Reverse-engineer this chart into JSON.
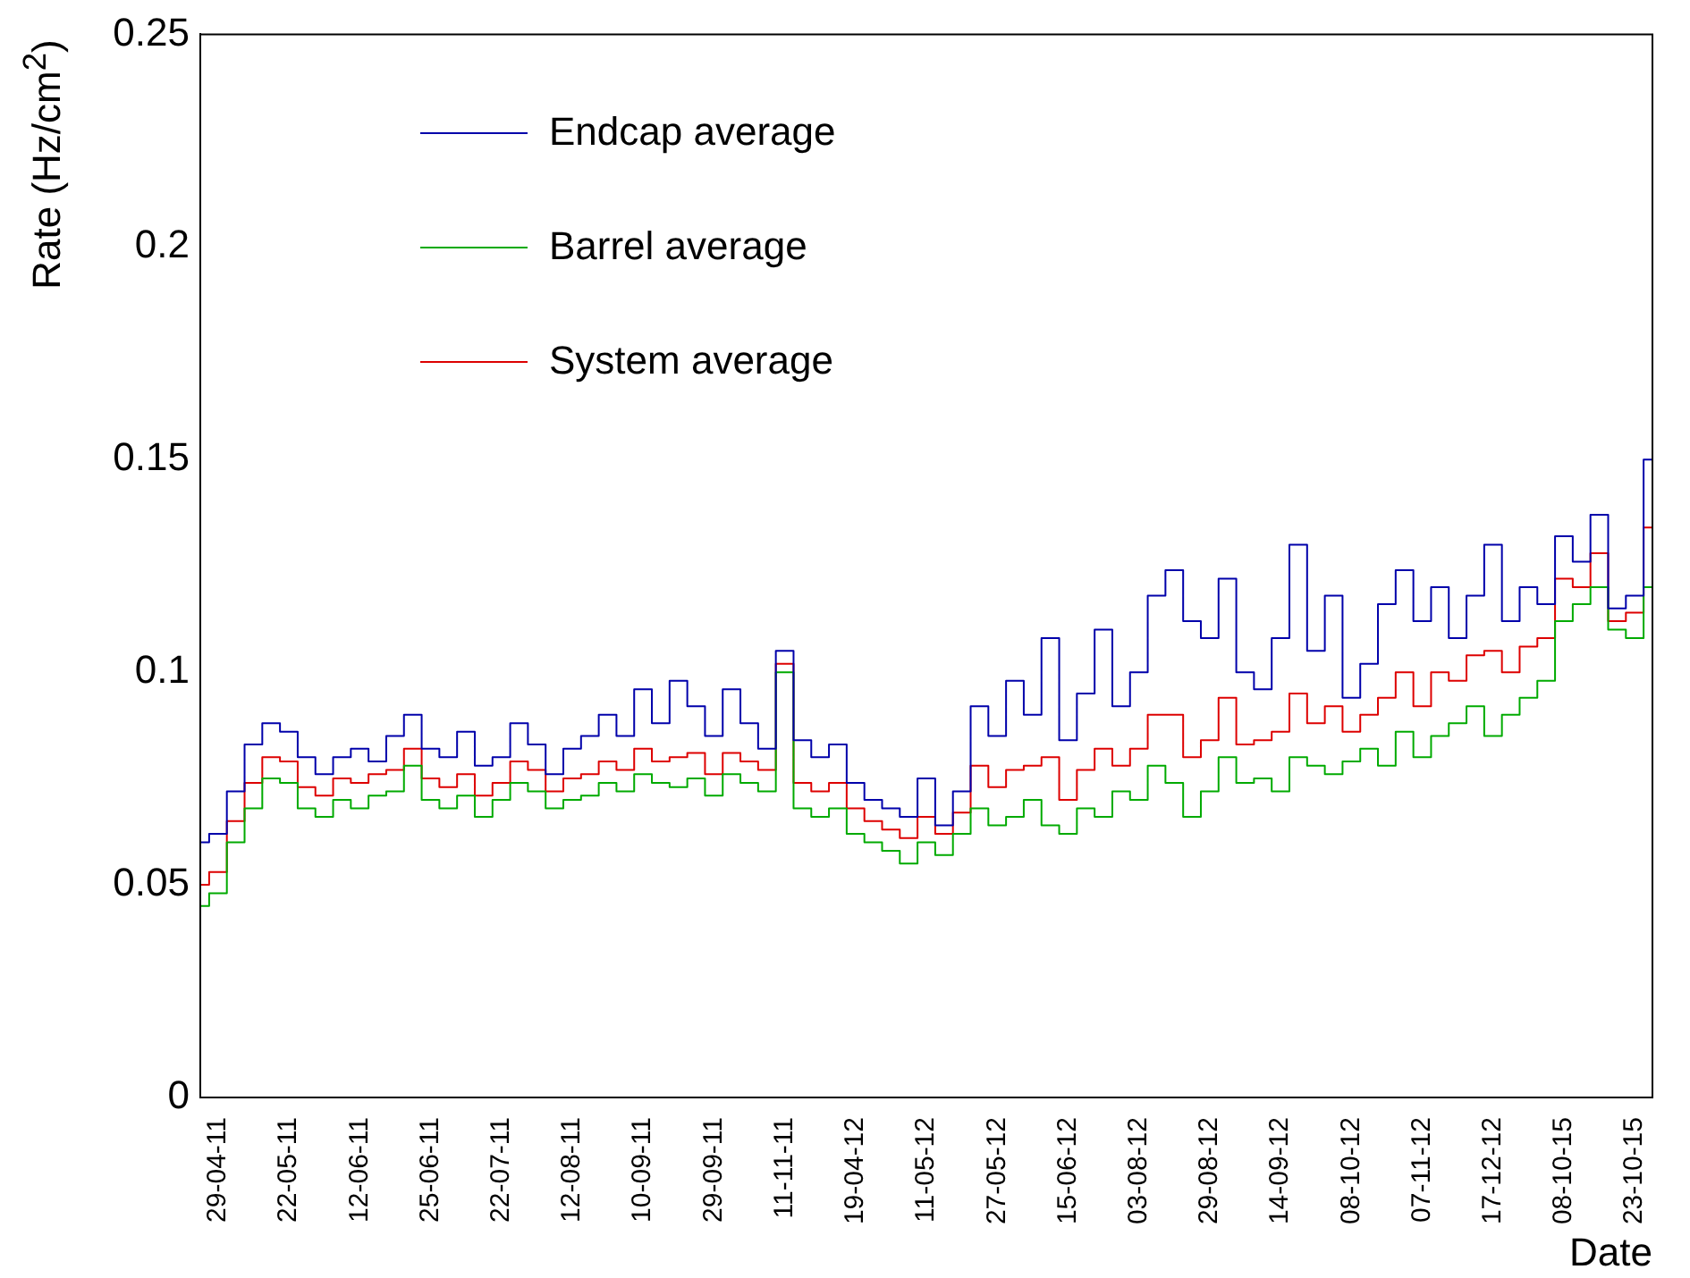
{
  "chart_data": {
    "type": "step",
    "xlabel": "Date",
    "ylabel": "Rate (Hz/cm$^{2}$)",
    "legend": "top left",
    "grid": false,
    "categories": [
      null,
      "29-04-11",
      null,
      null,
      null,
      "22-05-11",
      null,
      null,
      null,
      "12-06-11",
      null,
      null,
      null,
      "25-06-11",
      null,
      null,
      null,
      "22-07-11",
      null,
      null,
      null,
      "12-08-11",
      null,
      null,
      null,
      "10-09-11",
      null,
      null,
      null,
      "29-09-11",
      null,
      null,
      null,
      "11-11-11",
      null,
      null,
      null,
      "19-04-12",
      null,
      null,
      null,
      "11-05-12",
      null,
      null,
      null,
      "27-05-12",
      null,
      null,
      null,
      "15-06-12",
      null,
      null,
      null,
      "03-08-12",
      null,
      null,
      null,
      "29-08-12",
      null,
      null,
      null,
      "14-09-12",
      null,
      null,
      null,
      "08-10-12",
      null,
      null,
      null,
      "07-11-12",
      null,
      null,
      null,
      "17-12-12",
      null,
      null,
      null,
      "08-10-15",
      null,
      null,
      null,
      "23-10-15",
      null
    ],
    "ylim": [
      0,
      0.25
    ],
    "yticks": [
      0,
      0.05,
      0.1,
      0.15,
      0.2,
      0.25
    ],
    "series": [
      {
        "name": "Endcap average",
        "color": "#0000aa",
        "values": [
          0.06,
          0.062,
          0.072,
          0.083,
          0.088,
          0.086,
          0.08,
          0.076,
          0.08,
          0.082,
          0.079,
          0.085,
          0.09,
          0.082,
          0.08,
          0.086,
          0.078,
          0.08,
          0.088,
          0.083,
          0.076,
          0.082,
          0.085,
          0.09,
          0.085,
          0.096,
          0.088,
          0.098,
          0.092,
          0.085,
          0.096,
          0.088,
          0.082,
          0.105,
          0.084,
          0.08,
          0.083,
          0.074,
          0.07,
          0.068,
          0.066,
          0.075,
          0.064,
          0.072,
          0.092,
          0.085,
          0.098,
          0.09,
          0.108,
          0.084,
          0.095,
          0.11,
          0.092,
          0.1,
          0.118,
          0.124,
          0.112,
          0.108,
          0.122,
          0.1,
          0.096,
          0.108,
          0.13,
          0.105,
          0.118,
          0.094,
          0.102,
          0.116,
          0.124,
          0.112,
          0.12,
          0.108,
          0.118,
          0.13,
          0.112,
          0.12,
          0.116,
          0.132,
          0.126,
          0.137,
          0.115,
          0.118,
          0.15
        ]
      },
      {
        "name": "Barrel average",
        "color": "#00aa00",
        "values": [
          0.045,
          0.048,
          0.06,
          0.068,
          0.075,
          0.074,
          0.068,
          0.066,
          0.07,
          0.068,
          0.071,
          0.072,
          0.078,
          0.07,
          0.068,
          0.071,
          0.066,
          0.07,
          0.074,
          0.072,
          0.068,
          0.07,
          0.071,
          0.074,
          0.072,
          0.076,
          0.074,
          0.073,
          0.075,
          0.071,
          0.076,
          0.074,
          0.072,
          0.1,
          0.068,
          0.066,
          0.068,
          0.062,
          0.06,
          0.058,
          0.055,
          0.06,
          0.057,
          0.062,
          0.068,
          0.064,
          0.066,
          0.07,
          0.064,
          0.062,
          0.068,
          0.066,
          0.072,
          0.07,
          0.078,
          0.074,
          0.066,
          0.072,
          0.08,
          0.074,
          0.075,
          0.072,
          0.08,
          0.078,
          0.076,
          0.079,
          0.082,
          0.078,
          0.086,
          0.08,
          0.085,
          0.088,
          0.092,
          0.085,
          0.09,
          0.094,
          0.098,
          0.112,
          0.116,
          0.12,
          0.11,
          0.108,
          0.12
        ]
      },
      {
        "name": "System average",
        "color": "#dd0000",
        "values": [
          0.05,
          0.053,
          0.065,
          0.074,
          0.08,
          0.079,
          0.073,
          0.071,
          0.075,
          0.074,
          0.076,
          0.077,
          0.082,
          0.075,
          0.073,
          0.076,
          0.071,
          0.074,
          0.079,
          0.077,
          0.072,
          0.075,
          0.076,
          0.079,
          0.077,
          0.082,
          0.079,
          0.08,
          0.081,
          0.076,
          0.081,
          0.079,
          0.077,
          0.102,
          0.074,
          0.072,
          0.074,
          0.068,
          0.065,
          0.063,
          0.061,
          0.066,
          0.062,
          0.067,
          0.078,
          0.073,
          0.077,
          0.078,
          0.08,
          0.07,
          0.077,
          0.082,
          0.078,
          0.082,
          0.09,
          0.09,
          0.08,
          0.084,
          0.094,
          0.083,
          0.084,
          0.086,
          0.095,
          0.088,
          0.092,
          0.086,
          0.09,
          0.094,
          0.1,
          0.092,
          0.1,
          0.098,
          0.104,
          0.105,
          0.1,
          0.106,
          0.108,
          0.122,
          0.12,
          0.128,
          0.112,
          0.114,
          0.134
        ]
      }
    ]
  }
}
